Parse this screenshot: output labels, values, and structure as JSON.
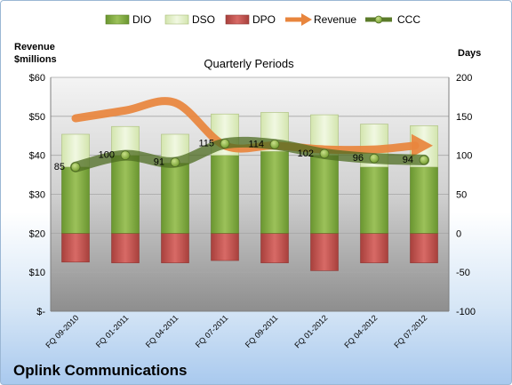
{
  "chart_data": {
    "type": "bar",
    "title": "Quarterly Periods",
    "footer": "Oplink Communications",
    "left_axis": {
      "label_line1": "Revenue",
      "label_line2": "$millions",
      "range": [
        0,
        60
      ],
      "ticks": [
        "$-",
        "$10",
        "$20",
        "$30",
        "$40",
        "$50",
        "$60"
      ]
    },
    "right_axis": {
      "label": "Days",
      "range": [
        -100,
        200
      ],
      "ticks": [
        "-100",
        "-50",
        "0",
        "50",
        "100",
        "150",
        "200"
      ]
    },
    "categories": [
      "FQ 09-2010",
      "FQ 01-2011",
      "FQ 04-2011",
      "FQ 07-2011",
      "FQ 09-2011",
      "FQ 01-2012",
      "FQ 04-2012",
      "FQ 07-2012"
    ],
    "series": [
      {
        "name": "DIO",
        "values": [
          85,
          100,
          90,
          100,
          105,
          100,
          85,
          85
        ],
        "color": "#7aa33a"
      },
      {
        "name": "DSO",
        "values": [
          42,
          37,
          37,
          53,
          50,
          52,
          55,
          53
        ],
        "color": "#e2efc6"
      },
      {
        "name": "DPO",
        "values": [
          -37,
          -38,
          -38,
          -35,
          -38,
          -48,
          -38,
          -38
        ],
        "color": "#c0504d"
      },
      {
        "name": "Revenue",
        "values": [
          49.5,
          51.5,
          53.5,
          42.5,
          42.5,
          41.5,
          41.5,
          42.5
        ],
        "color": "#e8853d"
      },
      {
        "name": "CCC",
        "values": [
          85,
          100,
          91,
          115,
          114,
          102,
          96,
          94
        ],
        "color": "#5b7b2a"
      }
    ],
    "ccc_labels": [
      "85",
      "100",
      "91",
      "115",
      "114",
      "102",
      "96",
      "94"
    ]
  }
}
